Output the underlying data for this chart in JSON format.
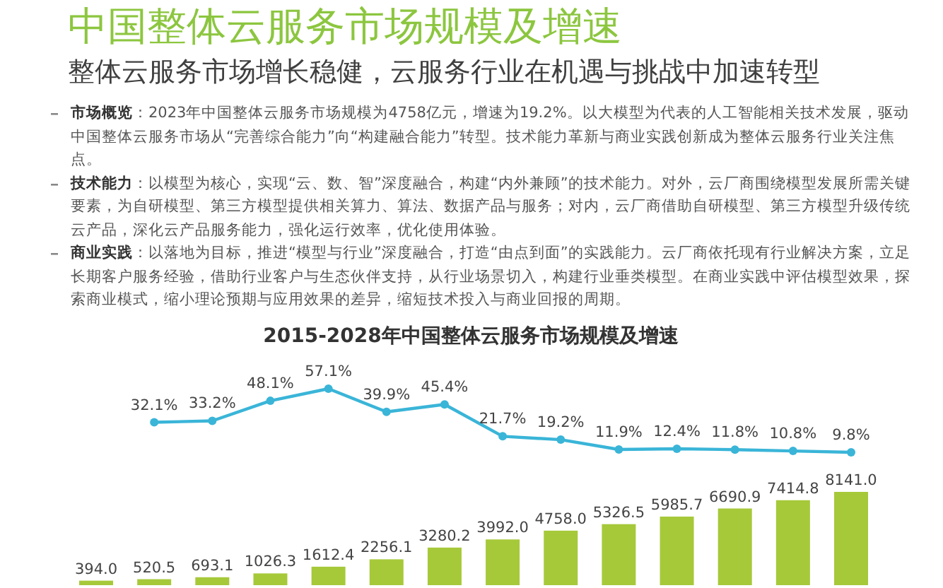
{
  "chart_data": [
    {
      "type": "bar",
      "annotations": [
        "中国整体云服务市场规模及增速",
        "整体云服务市场增长稳健，云服务行业在机遇与挑战中加速转型",
        "**市场概览**：2023年中国整体云服务市场规模为4758亿元，增速为19.2%。以大模型为代表的人工智能相关技术发展，驱动中国整体云服务市场从“完善综合能力”向“构建融合能力”转型。技术能力革新与商业实践创新成为整体云服务行业关注焦点。",
        "**技术能力**：以模型为核心，实现“云、数、智”深度融合，构建“内外兼顾”的技术能力。对外，云厂商围绕模型发展所需关键要素，为自研模型、第三方模型提供相关算力、算法、数据产品与服务；对内，云厂商借助自研模型、第三方模型升级传统云产品，深化云产品服务能力，强化运行效率，优化使用体验。",
        "**商业实践**：以落地为目标，推进“模型与行业”深度融合，打造“由点到面”的实践能力。云厂商依托现有行业解决方案，立足长期客户服务经验，借助行业客户与生态伙伴支持，从行业场景切入，构建行业垂类模型。在商业实践中评估模型效果，探索商业模式，缩小理论预期与应用效果的差异，缩短技术投入与商业回报的周期。"
      ],
      "categories": [
        null,
        null,
        null,
        null,
        null,
        null,
        null,
        null,
        null,
        null,
        null,
        null,
        null,
        null
      ],
      "color": "#a6c93a",
      "values": [
        394.0,
        520.5,
        693.1,
        1026.3,
        1612.4,
        2256.1,
        3280.2,
        3992.0,
        4758.0,
        5326.5,
        5985.7,
        6690.9,
        7414.8,
        8141.0
      ],
      "value_labels": [
        "394.0",
        "520.5",
        "693.1",
        "1026.3",
        "1612.4",
        "2256.1",
        "3280.2",
        "3992.0",
        "4758.0",
        "5326.5",
        "5985.7",
        "6690.9",
        "7414.8",
        "8141.0"
      ]
    },
    {
      "type": "line",
      "title": "2015-2028年中国整体云服务市场规模及增速",
      "categories": [
        null,
        null,
        null,
        null,
        null,
        null,
        null,
        null,
        null,
        null,
        null,
        null,
        null
      ],
      "color": "#3ab5d8",
      "marker": "circle",
      "values": [
        32.1,
        33.2,
        48.1,
        57.1,
        39.9,
        45.4,
        21.7,
        19.2,
        11.9,
        12.4,
        11.8,
        10.8,
        9.8
      ],
      "value_labels": [
        "32.1%",
        "33.2%",
        "48.1%",
        "57.1%",
        "39.9%",
        "45.4%",
        "21.7%",
        "19.2%",
        "11.9%",
        "12.4%",
        "11.8%",
        "10.8%",
        "9.8%"
      ]
    }
  ]
}
